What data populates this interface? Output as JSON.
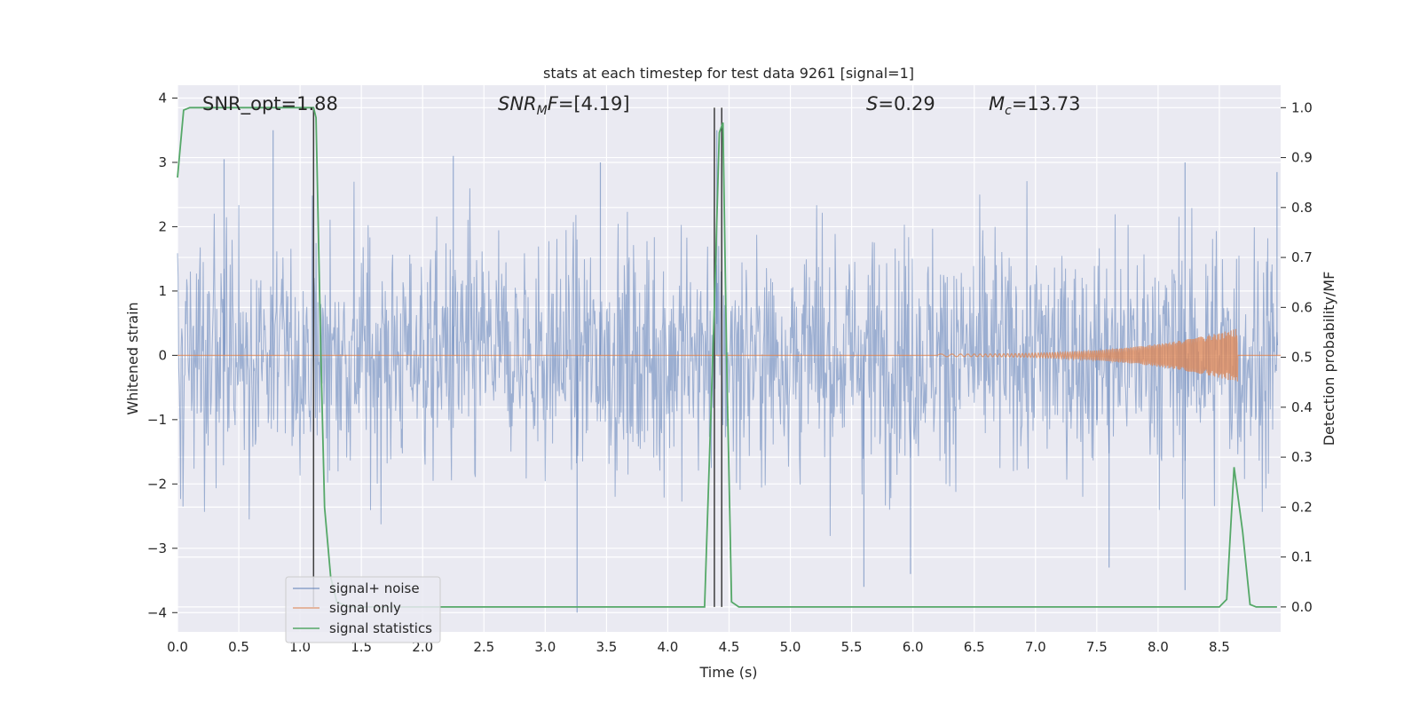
{
  "chart_data": {
    "type": "line",
    "title": "stats at each timestep for test data 9261 [signal=1]",
    "xlabel": "Time (s)",
    "ylabel_left": "Whitened strain",
    "ylabel_right": "Detection probability/MF",
    "xlim": [
      0.0,
      9.0
    ],
    "ylim_left": [
      -4.3,
      4.2
    ],
    "ylim_right": [
      -0.05,
      1.045
    ],
    "x_ticks": [
      "0.0",
      "0.5",
      "1.0",
      "1.5",
      "2.0",
      "2.5",
      "3.0",
      "3.5",
      "4.0",
      "4.5",
      "5.0",
      "5.5",
      "6.0",
      "6.5",
      "7.0",
      "7.5",
      "8.0",
      "8.5"
    ],
    "y_ticks_left": [
      "4",
      "3",
      "2",
      "1",
      "0",
      "−1",
      "−2",
      "−3",
      "−4"
    ],
    "y_ticks_right": [
      "1.0",
      "0.9",
      "0.8",
      "0.7",
      "0.6",
      "0.5",
      "0.4",
      "0.3",
      "0.2",
      "0.1",
      "0.0"
    ],
    "grid": true,
    "legend_position": "lower-left",
    "colors": {
      "noise": "#4c72b0",
      "signal": "#dd8452",
      "stats": "#55a868",
      "vlines": "#3d3d3d",
      "background": "#eaeaf2"
    },
    "series": [
      {
        "name": "signal+ noise",
        "axis": "left",
        "description_level": "noisy strain, band roughly ±1.5 with peaks to about ±3.5",
        "spikes": [
          {
            "x": 0.78,
            "y": 3.5
          },
          {
            "x": 0.38,
            "y": 3.05
          },
          {
            "x": 2.25,
            "y": 3.1
          },
          {
            "x": 3.26,
            "y": -4.0
          },
          {
            "x": 3.45,
            "y": 3.0
          },
          {
            "x": 4.4,
            "y": 3.5
          },
          {
            "x": 5.6,
            "y": -3.6
          },
          {
            "x": 5.98,
            "y": -3.4
          },
          {
            "x": 7.5,
            "y": -1.0
          },
          {
            "x": 7.6,
            "y": -3.3
          },
          {
            "x": 8.22,
            "y": -3.65
          },
          {
            "x": 8.22,
            "y": 3.0
          },
          {
            "x": 8.97,
            "y": 2.85
          }
        ]
      },
      {
        "name": "signal only",
        "axis": "left",
        "chirp_start": 6.2,
        "chirp_end": 8.65,
        "peak_amplitude": 0.4
      },
      {
        "name": "signal statistics",
        "axis": "right",
        "x": [
          0.0,
          0.05,
          0.1,
          0.15,
          0.2,
          0.5,
          1.0,
          1.11,
          1.13,
          1.17,
          1.2,
          1.25,
          1.3,
          1.4,
          4.25,
          4.3,
          4.34,
          4.38,
          4.42,
          4.45,
          4.48,
          4.52,
          4.58,
          4.7,
          8.5,
          8.56,
          8.62,
          8.69,
          8.75,
          8.8,
          8.86,
          8.97
        ],
        "y": [
          0.86,
          0.995,
          1.0,
          1.0,
          1.0,
          1.0,
          1.0,
          1.0,
          0.98,
          0.5,
          0.2,
          0.06,
          0.01,
          0.0,
          0.0,
          0.0,
          0.3,
          0.6,
          0.95,
          0.97,
          0.5,
          0.01,
          0.0,
          0.0,
          0.0,
          0.015,
          0.28,
          0.15,
          0.005,
          0.0,
          0.0,
          0.0
        ]
      }
    ],
    "vertical_lines": [
      1.11,
      4.38,
      4.44
    ],
    "annotations": [
      "SNR_opt=1.88",
      "S=0.29",
      "=13.73",
      "=[4.19]"
    ],
    "annotation_parts": {
      "snr_opt": "SNR_opt=1.88",
      "snrmf_main": "SNR",
      "snrmf_sub": "M",
      "snrmf_tail": "F",
      "snrmf_value": "=[4.19]",
      "s_main": "S",
      "s_value": "=0.29",
      "mc_main": "M",
      "mc_sub": "c",
      "mc_value": "=13.73"
    },
    "legend": [
      "signal+ noise",
      "signal only",
      "signal statistics"
    ]
  }
}
